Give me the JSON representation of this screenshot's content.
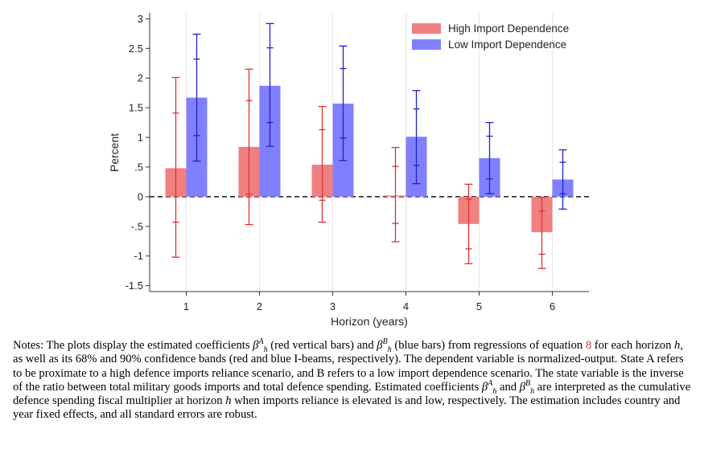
{
  "chart_data": {
    "type": "bar",
    "categories": [
      "1",
      "2",
      "3",
      "4",
      "5",
      "6"
    ],
    "xlabel": "Horizon (years)",
    "ylabel": "Percent",
    "ylim": [
      -1.6,
      3.1
    ],
    "yticks": [
      3,
      2.5,
      2,
      1.5,
      1,
      0.5,
      0,
      -0.5,
      -1,
      -1.5
    ],
    "ytick_labels": [
      "3",
      "2.5",
      "2",
      "1.5",
      "1",
      ".5",
      "0",
      "-.5",
      "-1",
      "-1.5"
    ],
    "legend_position": "top-right",
    "zero_line": "dashed",
    "series": [
      {
        "name": "High Import Dependence",
        "color": "#f08080",
        "ci_color": "#e03030",
        "values": [
          0.48,
          0.84,
          0.54,
          0.02,
          -0.46,
          -0.6
        ],
        "ci68": [
          [
            -0.43,
            1.41
          ],
          [
            0.04,
            1.62
          ],
          [
            -0.06,
            1.13
          ],
          [
            -0.45,
            0.51
          ],
          [
            -0.88,
            -0.04
          ],
          [
            -0.97,
            -0.24
          ]
        ],
        "ci90": [
          [
            -1.02,
            2.01
          ],
          [
            -0.47,
            2.15
          ],
          [
            -0.43,
            1.52
          ],
          [
            -0.76,
            0.83
          ],
          [
            -1.13,
            0.21
          ],
          [
            -1.21,
            -0.01
          ]
        ]
      },
      {
        "name": "Low Import Dependence",
        "color": "#8080ff",
        "ci_color": "#2020c8",
        "values": [
          1.67,
          1.87,
          1.57,
          1.01,
          0.65,
          0.29
        ],
        "ci68": [
          [
            1.03,
            2.32
          ],
          [
            1.25,
            2.51
          ],
          [
            0.99,
            2.16
          ],
          [
            0.53,
            1.48
          ],
          [
            0.3,
            1.02
          ],
          [
            0.05,
            0.58
          ]
        ],
        "ci90": [
          [
            0.6,
            2.74
          ],
          [
            0.85,
            2.92
          ],
          [
            0.61,
            2.54
          ],
          [
            0.22,
            1.79
          ],
          [
            0.05,
            1.25
          ],
          [
            -0.21,
            0.79
          ]
        ]
      }
    ]
  },
  "notes": {
    "p1": "Notes: The plots display the estimated coefficients ",
    "beta": "β",
    "sub_h": "h",
    "sup_A": "A",
    "sup_B": "B",
    "p2": " (red vertical bars) and ",
    "p3": " (blue bars) from regressions of equation ",
    "eq_ref": "8",
    "p4": " for each horizon ",
    "h": "h",
    "p5": ", as well as its 68% and 90% confidence bands (red and blue I-beams, respectively). The dependent variable is normalized-output. State A refers to be proximate to a high defence imports reliance scenario, and B refers to a low import dependence scenario. The state variable is the inverse of the ratio between total military goods imports and total defence spending. Estimated coefficients ",
    "p6": " and ",
    "p7": " are interpreted as the cumulative defence spending fiscal multiplier at horizon ",
    "p8": " when imports reliance is elevated is and low, respectively. The estimation includes country and year fixed effects, and all standard errors are robust."
  }
}
